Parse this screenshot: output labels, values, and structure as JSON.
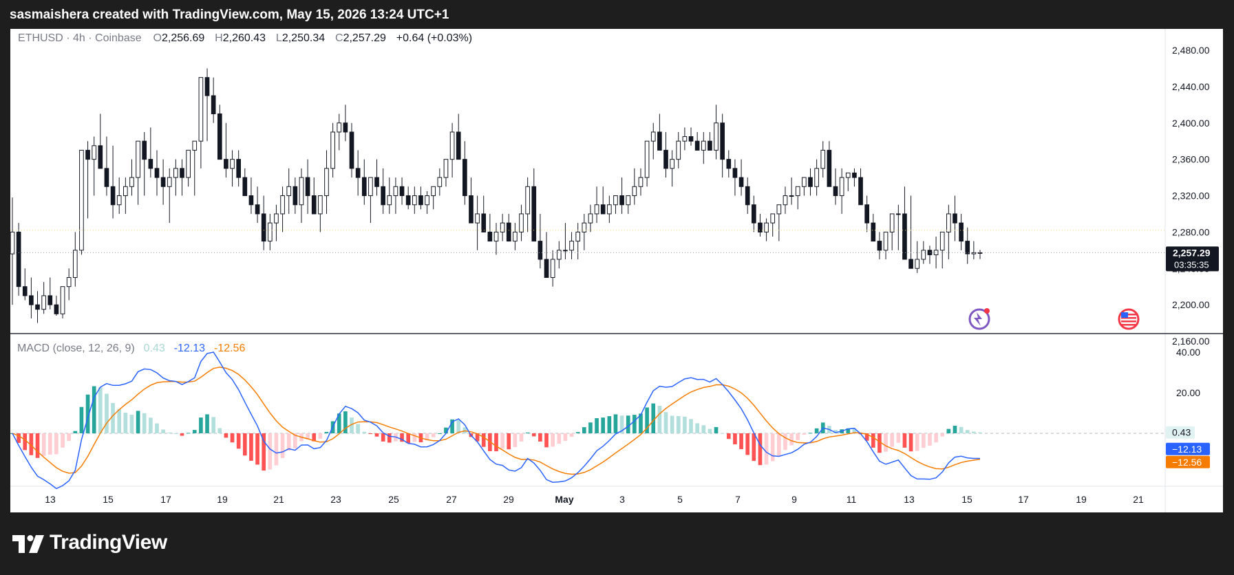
{
  "header": {
    "attribution": "sasmaishera created with TradingView.com, May 15, 2026 13:24 UTC+1"
  },
  "footer": {
    "brand": "TradingView"
  },
  "legend": {
    "symbol": "ETHUSD",
    "interval": "4h",
    "exchange": "Coinbase",
    "open_label": "O",
    "open": "2,256.69",
    "high_label": "H",
    "high": "2,260.43",
    "low_label": "L",
    "low": "2,250.34",
    "close_label": "C",
    "close": "2,257.29",
    "change": "+0.64 (+0.03%)"
  },
  "macd_legend": {
    "name": "MACD",
    "params": "(close, 12, 26, 9)",
    "histogram": "0.43",
    "macd": "-12.13",
    "signal": "-12.56"
  },
  "price_badge": {
    "price": "2,257.29",
    "countdown": "03:35:35"
  },
  "macd_badges": {
    "histogram": "0.43",
    "macd": "−12.13",
    "signal": "−12.56"
  },
  "colors": {
    "up": "#089981",
    "down": "#f23645",
    "macd": "#2962ff",
    "signal": "#f57c00",
    "hist_up_strong": "#26a69a",
    "hist_up_weak": "#b2dfdb",
    "hist_down_strong": "#ff5252",
    "hist_down_weak": "#ffcdd2"
  },
  "chart_data": [
    {
      "type": "candlestick",
      "title": "ETHUSD · 4h · Coinbase",
      "y_axis_ticks": [
        "2,480.00",
        "2,440.00",
        "2,400.00",
        "2,360.00",
        "2,320.00",
        "2,280.00",
        "2,240.00",
        "2,200.00",
        "2,160.00"
      ],
      "ylim": [
        2150,
        2500
      ],
      "x_axis_ticks": [
        "13",
        "15",
        "17",
        "19",
        "21",
        "23",
        "25",
        "27",
        "29",
        "May",
        "3",
        "5",
        "7",
        "9",
        "11",
        "13",
        "15",
        "17",
        "19",
        "21"
      ],
      "last_price": 2257.29,
      "ohlc_shape": [
        [
          2256,
          2318,
          2200
        ],
        [
          2280,
          2290,
          2210
        ],
        [
          2220,
          2240,
          2205
        ],
        [
          2210,
          2230,
          2185
        ],
        [
          2200,
          2215,
          2180
        ],
        [
          2195,
          2225,
          2190
        ],
        [
          2210,
          2230,
          2195
        ],
        [
          2200,
          2210,
          2188
        ],
        [
          2190,
          2215,
          2185
        ],
        [
          2220,
          2240,
          2205
        ],
        [
          2230,
          2280,
          2220
        ],
        [
          2260,
          2320,
          2255
        ],
        [
          2370,
          2380,
          2295
        ],
        [
          2360,
          2385,
          2320
        ],
        [
          2375,
          2410,
          2350
        ],
        [
          2350,
          2385,
          2320
        ],
        [
          2330,
          2375,
          2295
        ],
        [
          2310,
          2340,
          2300
        ],
        [
          2320,
          2340,
          2300
        ],
        [
          2330,
          2360,
          2320
        ],
        [
          2340,
          2350,
          2310
        ],
        [
          2380,
          2390,
          2320
        ],
        [
          2360,
          2395,
          2340
        ],
        [
          2350,
          2370,
          2320
        ],
        [
          2340,
          2360,
          2310
        ],
        [
          2330,
          2350,
          2290
        ],
        [
          2340,
          2360,
          2320
        ],
        [
          2350,
          2360,
          2320
        ],
        [
          2340,
          2370,
          2330
        ],
        [
          2370,
          2380,
          2320
        ],
        [
          2380,
          2440,
          2350
        ],
        [
          2450,
          2460,
          2380
        ],
        [
          2430,
          2450,
          2400
        ],
        [
          2410,
          2420,
          2380
        ],
        [
          2360,
          2400,
          2340
        ],
        [
          2350,
          2370,
          2330
        ],
        [
          2360,
          2370,
          2330
        ],
        [
          2340,
          2350,
          2320
        ],
        [
          2320,
          2340,
          2300
        ],
        [
          2310,
          2330,
          2290
        ],
        [
          2300,
          2320,
          2260
        ],
        [
          2270,
          2300,
          2260
        ],
        [
          2290,
          2310,
          2270
        ],
        [
          2300,
          2330,
          2280
        ],
        [
          2320,
          2350,
          2300
        ],
        [
          2330,
          2340,
          2300
        ],
        [
          2310,
          2350,
          2290
        ],
        [
          2340,
          2360,
          2300
        ],
        [
          2320,
          2340,
          2300
        ],
        [
          2300,
          2320,
          2280
        ],
        [
          2320,
          2370,
          2300
        ],
        [
          2350,
          2400,
          2340
        ],
        [
          2390,
          2410,
          2370
        ],
        [
          2400,
          2420,
          2380
        ],
        [
          2390,
          2400,
          2340
        ],
        [
          2350,
          2370,
          2320
        ],
        [
          2340,
          2360,
          2310
        ],
        [
          2320,
          2340,
          2290
        ],
        [
          2340,
          2360,
          2320
        ],
        [
          2330,
          2350,
          2300
        ],
        [
          2310,
          2340,
          2300
        ],
        [
          2320,
          2340,
          2300
        ],
        [
          2330,
          2340,
          2310
        ],
        [
          2320,
          2330,
          2305
        ],
        [
          2310,
          2330,
          2300
        ],
        [
          2320,
          2330,
          2305
        ],
        [
          2310,
          2325,
          2300
        ],
        [
          2320,
          2330,
          2305
        ],
        [
          2330,
          2350,
          2320
        ],
        [
          2340,
          2360,
          2330
        ],
        [
          2360,
          2400,
          2340
        ],
        [
          2390,
          2410,
          2360
        ],
        [
          2360,
          2380,
          2310
        ],
        [
          2320,
          2340,
          2300
        ],
        [
          2290,
          2320,
          2260
        ],
        [
          2300,
          2320,
          2280
        ],
        [
          2280,
          2300,
          2270
        ],
        [
          2270,
          2290,
          2255
        ],
        [
          2280,
          2300,
          2270
        ],
        [
          2290,
          2300,
          2270
        ],
        [
          2270,
          2290,
          2260
        ],
        [
          2280,
          2310,
          2270
        ],
        [
          2300,
          2340,
          2280
        ],
        [
          2330,
          2350,
          2290
        ],
        [
          2270,
          2300,
          2240
        ],
        [
          2250,
          2280,
          2230
        ],
        [
          2230,
          2260,
          2220
        ],
        [
          2250,
          2270,
          2240
        ],
        [
          2260,
          2290,
          2250
        ],
        [
          2260,
          2280,
          2250
        ],
        [
          2270,
          2290,
          2250
        ],
        [
          2280,
          2300,
          2260
        ],
        [
          2290,
          2310,
          2280
        ],
        [
          2300,
          2330,
          2290
        ],
        [
          2310,
          2330,
          2300
        ],
        [
          2300,
          2320,
          2290
        ],
        [
          2310,
          2320,
          2300
        ],
        [
          2320,
          2340,
          2300
        ],
        [
          2310,
          2320,
          2300
        ],
        [
          2320,
          2350,
          2310
        ],
        [
          2330,
          2350,
          2320
        ],
        [
          2340,
          2370,
          2330
        ],
        [
          2380,
          2400,
          2360
        ],
        [
          2390,
          2410,
          2370
        ],
        [
          2370,
          2390,
          2340
        ],
        [
          2350,
          2370,
          2330
        ],
        [
          2360,
          2390,
          2350
        ],
        [
          2380,
          2395,
          2370
        ],
        [
          2385,
          2395,
          2375
        ],
        [
          2380,
          2390,
          2370
        ],
        [
          2370,
          2390,
          2355
        ],
        [
          2380,
          2390,
          2370
        ],
        [
          2370,
          2420,
          2360
        ],
        [
          2400,
          2410,
          2340
        ],
        [
          2360,
          2370,
          2340
        ],
        [
          2350,
          2360,
          2320
        ],
        [
          2340,
          2360,
          2320
        ],
        [
          2330,
          2340,
          2300
        ],
        [
          2310,
          2320,
          2280
        ],
        [
          2290,
          2300,
          2275
        ],
        [
          2280,
          2295,
          2270
        ],
        [
          2290,
          2300,
          2275
        ],
        [
          2300,
          2310,
          2270
        ],
        [
          2310,
          2330,
          2300
        ],
        [
          2320,
          2340,
          2310
        ],
        [
          2320,
          2330,
          2305
        ],
        [
          2330,
          2340,
          2320
        ],
        [
          2340,
          2350,
          2320
        ],
        [
          2330,
          2360,
          2320
        ],
        [
          2350,
          2380,
          2340
        ],
        [
          2370,
          2380,
          2330
        ],
        [
          2330,
          2350,
          2310
        ],
        [
          2320,
          2350,
          2300
        ],
        [
          2340,
          2345,
          2325
        ],
        [
          2345,
          2350,
          2330
        ],
        [
          2340,
          2350,
          2320
        ],
        [
          2310,
          2320,
          2280
        ],
        [
          2290,
          2300,
          2270
        ],
        [
          2270,
          2280,
          2250
        ],
        [
          2260,
          2280,
          2250
        ],
        [
          2280,
          2300,
          2260
        ],
        [
          2300,
          2310,
          2260
        ],
        [
          2300,
          2330,
          2280
        ],
        [
          2250,
          2320,
          2240
        ],
        [
          2240,
          2270,
          2235
        ],
        [
          2250,
          2270,
          2245
        ],
        [
          2260,
          2265,
          2245
        ],
        [
          2255,
          2275,
          2240
        ],
        [
          2260,
          2275,
          2240
        ],
        [
          2280,
          2310,
          2250
        ],
        [
          2300,
          2320,
          2270
        ],
        [
          2290,
          2300,
          2260
        ],
        [
          2270,
          2285,
          2245
        ],
        [
          2256,
          2270,
          2250
        ],
        [
          2257.29,
          2260.43,
          2250.34
        ]
      ]
    },
    {
      "type": "macd",
      "title": "MACD (close, 12, 26, 9)",
      "y_axis_ticks": [
        "40.00",
        "20.00"
      ],
      "ylim": [
        -26,
        46
      ],
      "histogram_last": 0.43,
      "macd_last": -12.13,
      "signal_last": -12.56
    }
  ]
}
